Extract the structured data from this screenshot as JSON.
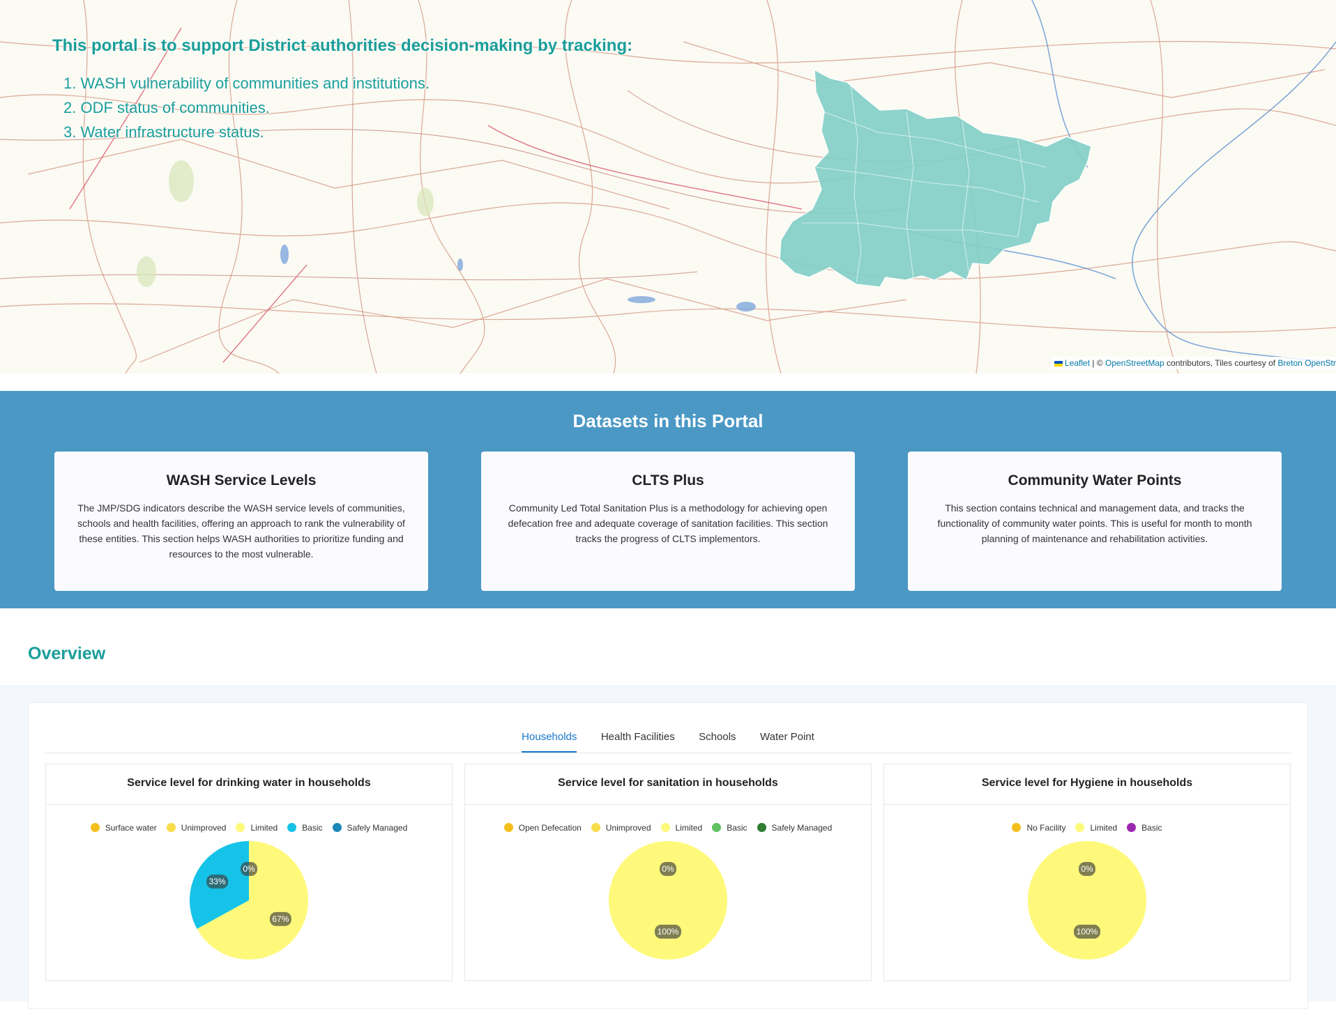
{
  "hero": {
    "title": "This portal is to support District authorities decision-making by tracking:",
    "items": [
      "1. WASH vulnerability of communities and institutions.",
      "2. ODF status of communities.",
      "3. Water infrastructure status."
    ],
    "attribution": {
      "leaflet": "Leaflet",
      "sep": " | © ",
      "osm": "OpenStreetMap",
      "mid": " contributors, Tiles courtesy of ",
      "breton": "Breton OpenStreetMap"
    }
  },
  "datasets": {
    "title": "Datasets in this Portal",
    "cards": [
      {
        "title": "WASH Service Levels",
        "text": "The JMP/SDG indicators describe the WASH service levels of communities, schools and health facilities, offering an approach to rank the vulnerability of these entities. This section helps WASH authorities to prioritize funding and resources to the most vulnerable."
      },
      {
        "title": "CLTS Plus",
        "text": "Community Led Total Sanitation Plus is a methodology for achieving open defecation free and adequate coverage of sanitation facilities. This section tracks the progress of CLTS implementors."
      },
      {
        "title": "Community Water Points",
        "text": "This section contains technical and management data, and tracks the functionality of community water points. This is useful for month to month planning of maintenance and rehabilitation activities."
      }
    ]
  },
  "overview": {
    "title": "Overview",
    "tabs": [
      "Households",
      "Health Facilities",
      "Schools",
      "Water Point"
    ],
    "active_tab": "Households"
  },
  "chart_data": [
    {
      "type": "pie",
      "title": "Service level for drinking water in households",
      "series": [
        {
          "name": "Surface water",
          "value": 0,
          "color": "#f4bf1d"
        },
        {
          "name": "Unimproved",
          "value": 0,
          "color": "#f8dc4a"
        },
        {
          "name": "Limited",
          "value": 67,
          "color": "#fef97a"
        },
        {
          "name": "Basic",
          "value": 33,
          "color": "#16c3e8"
        },
        {
          "name": "Safely Managed",
          "value": 0,
          "color": "#1e88b8"
        }
      ],
      "labels": [
        "0%",
        "33%",
        "67%"
      ]
    },
    {
      "type": "pie",
      "title": "Service level for sanitation in households",
      "series": [
        {
          "name": "Open Defecation",
          "value": 0,
          "color": "#f4bf1d"
        },
        {
          "name": "Unimproved",
          "value": 0,
          "color": "#f8dc4a"
        },
        {
          "name": "Limited",
          "value": 100,
          "color": "#fef97a"
        },
        {
          "name": "Basic",
          "value": 0,
          "color": "#5fc160"
        },
        {
          "name": "Safely Managed",
          "value": 0,
          "color": "#2e7d32"
        }
      ],
      "labels": [
        "0%",
        "100%"
      ]
    },
    {
      "type": "pie",
      "title": "Service level for Hygiene in households",
      "series": [
        {
          "name": "No Facility",
          "value": 0,
          "color": "#f4bf1d"
        },
        {
          "name": "Limited",
          "value": 100,
          "color": "#fef97a"
        },
        {
          "name": "Basic",
          "value": 0,
          "color": "#9c27b0"
        }
      ],
      "labels": [
        "0%",
        "100%"
      ]
    }
  ]
}
